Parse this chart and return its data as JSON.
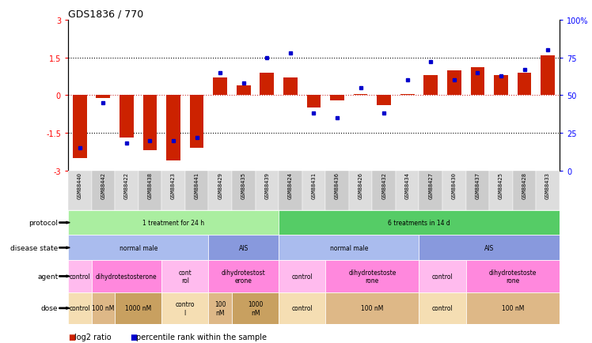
{
  "title": "GDS1836 / 770",
  "samples": [
    "GSM88440",
    "GSM88442",
    "GSM88422",
    "GSM88438",
    "GSM88423",
    "GSM88441",
    "GSM88429",
    "GSM88435",
    "GSM88439",
    "GSM88424",
    "GSM88431",
    "GSM88436",
    "GSM88426",
    "GSM88432",
    "GSM88434",
    "GSM88427",
    "GSM88430",
    "GSM88437",
    "GSM88425",
    "GSM88428",
    "GSM88433"
  ],
  "log2_ratio": [
    -2.5,
    -0.1,
    -1.7,
    -2.2,
    -2.6,
    -2.1,
    0.7,
    0.4,
    0.9,
    0.7,
    -0.5,
    -0.2,
    0.05,
    -0.4,
    0.05,
    0.8,
    1.0,
    1.1,
    0.8,
    0.9,
    1.6
  ],
  "percentile_rank": [
    15,
    45,
    18,
    20,
    20,
    22,
    65,
    58,
    75,
    78,
    38,
    35,
    55,
    38,
    60,
    72,
    60,
    65,
    63,
    67,
    80
  ],
  "ylim_left": [
    -3,
    3
  ],
  "ylim_right": [
    0,
    100
  ],
  "bar_color": "#cc2200",
  "dot_color": "#0000cc",
  "protocol_groups": [
    {
      "label": "1 treatment for 24 h",
      "start": 0,
      "end": 9,
      "color": "#aaeea0"
    },
    {
      "label": "6 treatments in 14 d",
      "start": 9,
      "end": 21,
      "color": "#55cc66"
    }
  ],
  "disease_groups": [
    {
      "label": "normal male",
      "start": 0,
      "end": 6,
      "color": "#aabcee"
    },
    {
      "label": "AIS",
      "start": 6,
      "end": 9,
      "color": "#8899dd"
    },
    {
      "label": "normal male",
      "start": 9,
      "end": 15,
      "color": "#aabcee"
    },
    {
      "label": "AIS",
      "start": 15,
      "end": 21,
      "color": "#8899dd"
    }
  ],
  "agent_groups": [
    {
      "label": "control",
      "start": 0,
      "end": 1,
      "color": "#ffbbee"
    },
    {
      "label": "dihydrotestosterone",
      "start": 1,
      "end": 4,
      "color": "#ff88dd"
    },
    {
      "label": "cont\nrol",
      "start": 4,
      "end": 6,
      "color": "#ffbbee"
    },
    {
      "label": "dihydrotestost\nerone",
      "start": 6,
      "end": 9,
      "color": "#ff88dd"
    },
    {
      "label": "control",
      "start": 9,
      "end": 11,
      "color": "#ffbbee"
    },
    {
      "label": "dihydrotestoste\nrone",
      "start": 11,
      "end": 15,
      "color": "#ff88dd"
    },
    {
      "label": "control",
      "start": 15,
      "end": 17,
      "color": "#ffbbee"
    },
    {
      "label": "dihydrotestoste\nrone",
      "start": 17,
      "end": 21,
      "color": "#ff88dd"
    }
  ],
  "dose_groups": [
    {
      "label": "control",
      "start": 0,
      "end": 1,
      "color": "#f5deb3"
    },
    {
      "label": "100 nM",
      "start": 1,
      "end": 2,
      "color": "#deb887"
    },
    {
      "label": "1000 nM",
      "start": 2,
      "end": 4,
      "color": "#c8a060"
    },
    {
      "label": "contro\nl",
      "start": 4,
      "end": 6,
      "color": "#f5deb3"
    },
    {
      "label": "100\nnM",
      "start": 6,
      "end": 7,
      "color": "#deb887"
    },
    {
      "label": "1000\nnM",
      "start": 7,
      "end": 9,
      "color": "#c8a060"
    },
    {
      "label": "control",
      "start": 9,
      "end": 11,
      "color": "#f5deb3"
    },
    {
      "label": "100 nM",
      "start": 11,
      "end": 15,
      "color": "#deb887"
    },
    {
      "label": "control",
      "start": 15,
      "end": 17,
      "color": "#f5deb3"
    },
    {
      "label": "100 nM",
      "start": 17,
      "end": 21,
      "color": "#deb887"
    }
  ],
  "row_labels": [
    "protocol",
    "disease state",
    "agent",
    "dose"
  ],
  "legend_bar_color": "#cc2200",
  "legend_dot_color": "#0000cc",
  "xticklabel_bg": "#dddddd",
  "xticklabel_alt_bg": "#cccccc"
}
